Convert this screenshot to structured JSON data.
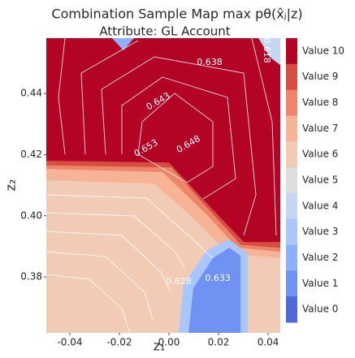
{
  "chart_data": {
    "type": "contour",
    "title": "Combination Sample Map max pθ(x̂ⱼ|z)",
    "subtitle": "Attribute: GL Account",
    "x_label": "z₁",
    "y_label": "z₂",
    "xlim": [
      -0.0495,
      0.0449
    ],
    "ylim": [
      0.3617,
      0.4581
    ],
    "xticks": [
      -0.04,
      -0.02,
      {
        "value": 0,
        "label": "0.00"
      },
      0.02,
      0.04
    ],
    "yticks": [
      0.38,
      {
        "value": 0.4,
        "label": "0.40"
      },
      0.42,
      0.44
    ],
    "colorbar": {
      "labels": [
        "Value 10",
        "Value 9",
        "Value 8",
        "Value 7",
        "Value 6",
        "Value 5",
        "Value 4",
        "Value 3",
        "Value 2",
        "Value 1",
        "Value 0"
      ],
      "colors": [
        "#b40426",
        "#d44e41",
        "#ee8468",
        "#f6b396",
        "#f2cbb7",
        "#dcdddd",
        "#c5d6f2",
        "#aac7fd",
        "#8db0fe",
        "#6f92f3",
        "#4f69d9"
      ]
    },
    "background_level": 6,
    "regions": [
      {
        "level": 7,
        "points": [
          [
            -0.0495,
            0.4116
          ],
          [
            -0.0059,
            0.4105
          ],
          [
            0.0121,
            0.3975
          ],
          [
            0.0236,
            0.3877
          ],
          [
            0.0449,
            0.3861
          ],
          [
            0.0449,
            0.4581
          ],
          [
            -0.0495,
            0.4581
          ]
        ]
      },
      {
        "level": 8,
        "points": [
          [
            -0.0495,
            0.4153
          ],
          [
            -0.0026,
            0.4143
          ],
          [
            0.0154,
            0.4002
          ],
          [
            0.0275,
            0.3896
          ],
          [
            0.0449,
            0.3882
          ],
          [
            0.0449,
            0.4581
          ],
          [
            -0.0495,
            0.4581
          ]
        ]
      },
      {
        "level": 9,
        "points": [
          [
            -0.0495,
            0.4165
          ],
          [
            0.001,
            0.4158
          ],
          [
            0.017,
            0.4012
          ],
          [
            0.029,
            0.3905
          ],
          [
            0.0449,
            0.3895
          ],
          [
            0.0449,
            0.4581
          ],
          [
            -0.0495,
            0.4581
          ]
        ]
      },
      {
        "level": 10,
        "points": [
          [
            -0.0495,
            0.418
          ],
          [
            0.0,
            0.4174
          ],
          [
            0.0177,
            0.402
          ],
          [
            0.0302,
            0.3914
          ],
          [
            0.0449,
            0.3914
          ],
          [
            0.0449,
            0.4581
          ],
          [
            -0.0495,
            0.4581
          ]
        ]
      },
      {
        "level": 3,
        "points": [
          [
            0.0039,
            0.3617
          ],
          [
            0.0059,
            0.3776
          ],
          [
            0.0154,
            0.3888
          ],
          [
            0.0243,
            0.3922
          ],
          [
            0.0318,
            0.3877
          ],
          [
            0.0318,
            0.3617
          ]
        ]
      },
      {
        "level": 1,
        "points": [
          [
            0.0079,
            0.3617
          ],
          [
            0.0098,
            0.3763
          ],
          [
            0.0177,
            0.3861
          ],
          [
            0.0243,
            0.3896
          ],
          [
            0.0289,
            0.3869
          ],
          [
            0.0289,
            0.3617
          ]
        ]
      },
      {
        "level": 2,
        "points": [
          [
            -0.023,
            0.4581
          ],
          [
            -0.0184,
            0.4541
          ],
          [
            -0.0141,
            0.4581
          ]
        ]
      },
      {
        "level": 4,
        "points": [
          [
            0.0361,
            0.4581
          ],
          [
            0.0449,
            0.4581
          ],
          [
            0.0449,
            0.4493
          ],
          [
            0.0407,
            0.4519
          ]
        ]
      }
    ],
    "contour_labels": [
      {
        "value": 0.638,
        "x": 0.0164,
        "y": 0.4501
      },
      {
        "value": 0.643,
        "x": -0.0043,
        "y": 0.4373
      },
      {
        "value": 0.648,
        "x": 0.0079,
        "y": 0.4233
      },
      {
        "value": 0.653,
        "x": -0.0092,
        "y": 0.422
      },
      {
        "value": 0.633,
        "x": 0.0197,
        "y": 0.3795
      },
      {
        "value": 0.628,
        "x": 0.0039,
        "y": 0.3784
      },
      {
        "value": 0.618,
        "x": 0.0393,
        "y": 0.4541
      }
    ]
  }
}
